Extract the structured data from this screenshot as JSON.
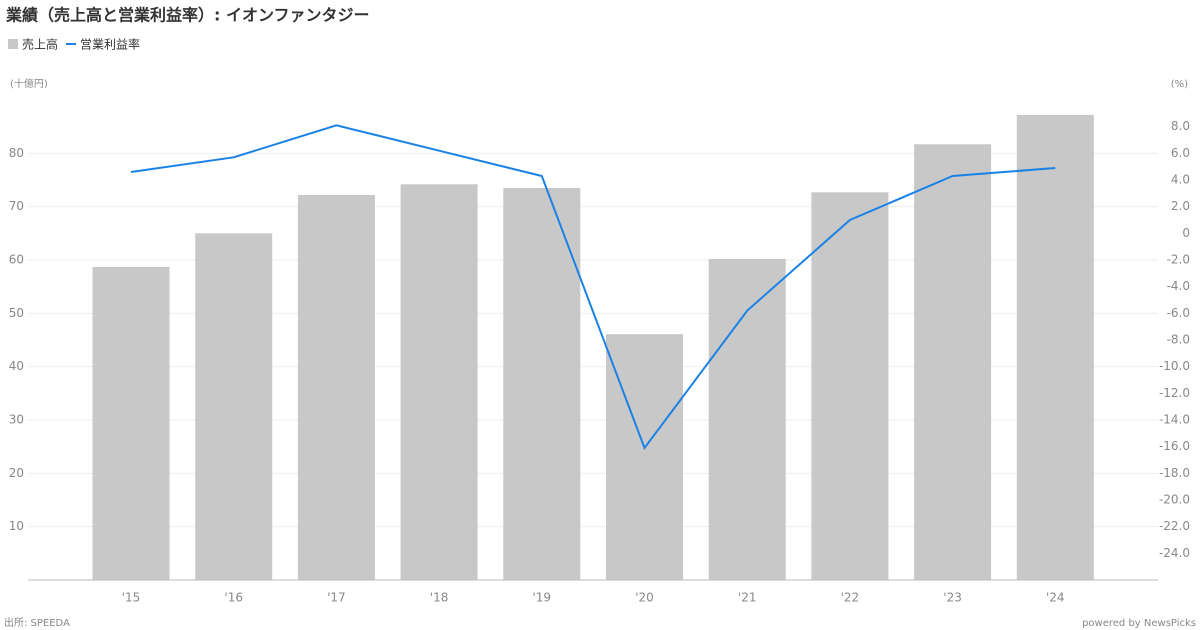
{
  "chart_data": {
    "type": "bar",
    "title": "業績（売上高と営業利益率）: イオンファンタジー",
    "y_label": "(十億円)",
    "y2_label": "(%)",
    "source": "出所: SPEEDA",
    "credit": "powered by NewsPicks",
    "categories": [
      "'15",
      "'16",
      "'17",
      "'18",
      "'19",
      "'20",
      "'21",
      "'22",
      "'23",
      "'24"
    ],
    "series": [
      {
        "name": "売上高",
        "type": "bar",
        "color": "#c8c8c8",
        "values": [
          58.7,
          65.0,
          72.2,
          74.2,
          73.5,
          46.1,
          60.2,
          72.7,
          81.7,
          87.2
        ]
      },
      {
        "name": "営業利益率",
        "type": "line",
        "axis": "y2",
        "color": "#1a82e6",
        "values": [
          4.6,
          5.7,
          8.1,
          6.2,
          4.3,
          -16.1,
          -5.8,
          1.0,
          4.3,
          4.9
        ]
      }
    ],
    "ylim": [
      0,
      90
    ],
    "yticks": [
      10,
      20,
      30,
      40,
      50,
      60,
      70,
      80
    ],
    "y2lim": [
      -26,
      10
    ],
    "y2ticks": [
      {
        "value": 8,
        "label": "8.0"
      },
      {
        "value": 6,
        "label": "6.0"
      },
      {
        "value": 4,
        "label": "4.0"
      },
      {
        "value": 2,
        "label": "2.0"
      },
      0,
      {
        "value": -2,
        "label": "-2.0"
      },
      {
        "value": -4,
        "label": "-4.0"
      },
      {
        "value": -6,
        "label": "-6.0"
      },
      {
        "value": -8,
        "label": "-8.0"
      },
      {
        "value": -10,
        "label": "-10.0"
      },
      {
        "value": -12,
        "label": "-12.0"
      },
      {
        "value": -14,
        "label": "-14.0"
      },
      {
        "value": -16,
        "label": "-16.0"
      },
      {
        "value": -18,
        "label": "-18.0"
      },
      {
        "value": -20,
        "label": "-20.0"
      },
      {
        "value": -22,
        "label": "-22.0"
      },
      {
        "value": -24,
        "label": "-24.0"
      }
    ],
    "grid": true
  }
}
